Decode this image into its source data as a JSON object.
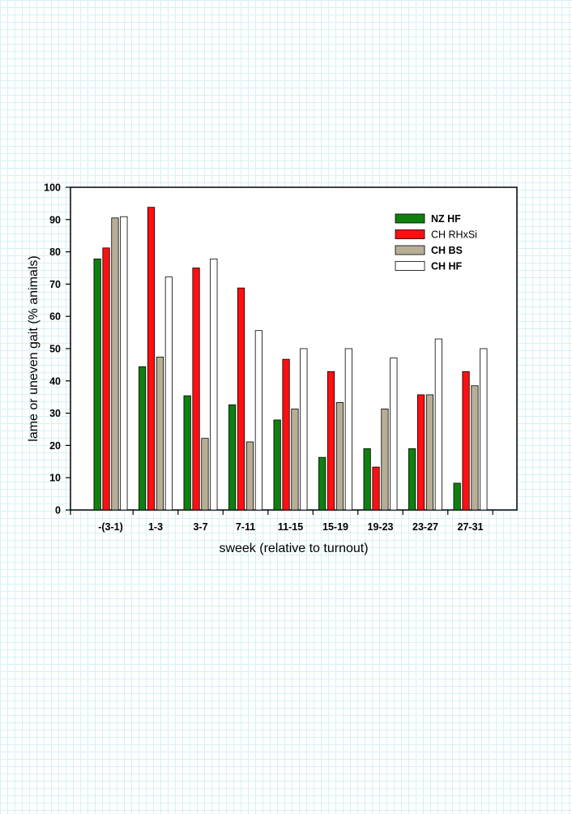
{
  "chart_data": {
    "type": "bar",
    "title": "",
    "xlabel": "sweek (relative to turnout)",
    "ylabel": "lame or uneven gait (% animals)",
    "ylim": [
      0,
      100
    ],
    "yticks": [
      0,
      10,
      20,
      30,
      40,
      50,
      60,
      70,
      80,
      90,
      100
    ],
    "grid": false,
    "legend_position": "top-right",
    "categories": [
      "-(3-1)",
      "1-3",
      "3-7",
      "7-11",
      "11-15",
      "15-19",
      "19-23",
      "23-27",
      "27-31"
    ],
    "series": [
      {
        "name": "NZ HF",
        "color": "#0f7f0f",
        "bold": true,
        "values": [
          77.8,
          44.4,
          35.4,
          32.6,
          27.9,
          16.3,
          19.0,
          19.0,
          8.3
        ]
      },
      {
        "name": "CH RHxSi",
        "color": "#ff1010",
        "bold": false,
        "values": [
          81.2,
          93.8,
          75.0,
          68.8,
          46.7,
          42.9,
          13.3,
          35.7,
          42.9
        ]
      },
      {
        "name": "CH BS",
        "color": "#b8ae96",
        "bold": true,
        "values": [
          90.5,
          47.4,
          22.2,
          21.1,
          31.3,
          33.3,
          31.3,
          35.7,
          38.5
        ]
      },
      {
        "name": "CH HF",
        "color": "#ffffff",
        "bold": true,
        "values": [
          90.9,
          72.2,
          77.8,
          55.6,
          50.0,
          50.0,
          47.1,
          53.0,
          50.0
        ]
      }
    ]
  }
}
